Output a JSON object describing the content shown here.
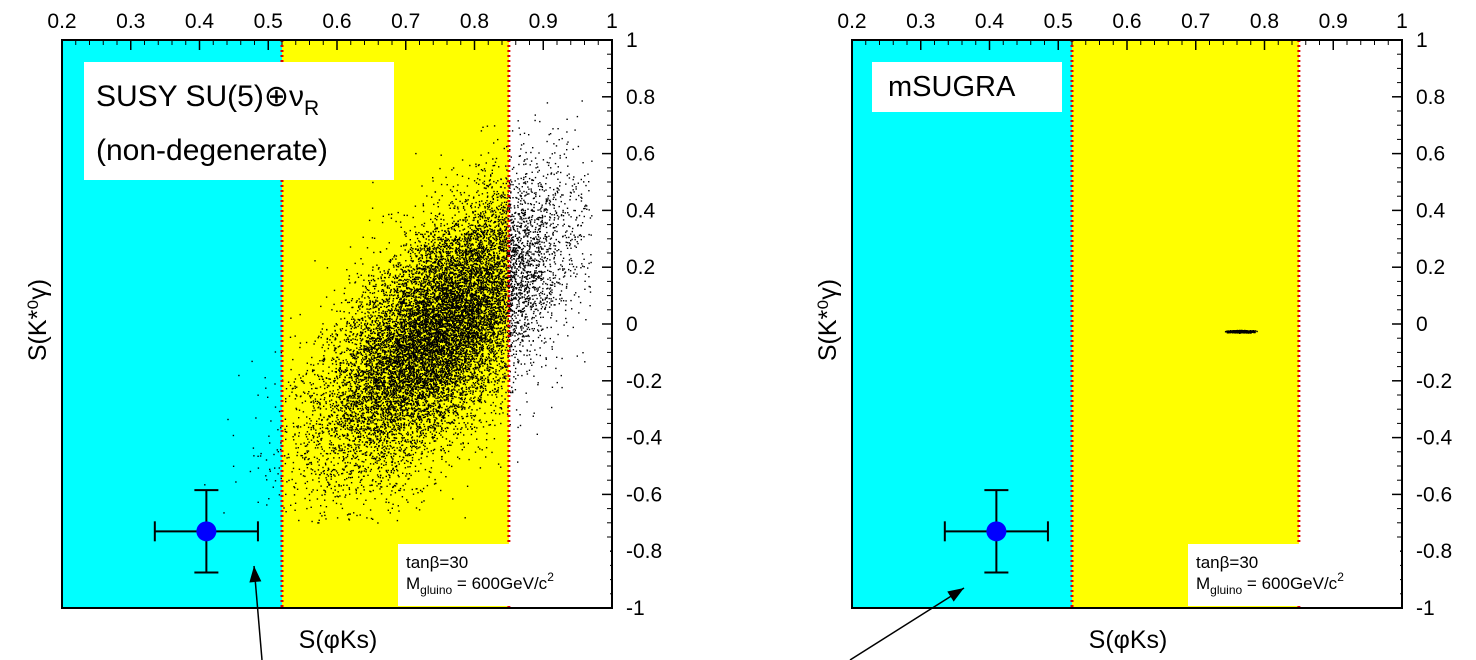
{
  "chart_data": [
    {
      "type": "scatter",
      "title": "",
      "xlabel": "S(φKs)",
      "ylabel": "S(K*⁰γ)",
      "xlim": [
        0.2,
        1.0
      ],
      "ylim": [
        -1.0,
        1.0
      ],
      "x_ticks": [
        "0.2",
        "0.3",
        "0.4",
        "0.5",
        "0.6",
        "0.7",
        "0.8",
        "0.9",
        "1"
      ],
      "y_ticks": [
        "1",
        "0.8",
        "0.6",
        "0.4",
        "0.2",
        "0",
        "-0.2",
        "-0.4",
        "-0.6",
        "-0.8",
        "-1"
      ],
      "x_axis_position": "top",
      "y_axis_position": "right",
      "grid": false,
      "legend": null,
      "bands": [
        {
          "x_from": 0.2,
          "x_to": 0.52,
          "color": "#00ffff"
        },
        {
          "x_from": 0.52,
          "x_to": 0.85,
          "color": "#ffff00"
        }
      ],
      "band_boundaries": [
        0.52,
        0.85
      ],
      "annotation_box": {
        "line1": "SUSY SU(5)⊕ν",
        "line1_sub": "R",
        "line2": "(non-degenerate)"
      },
      "param_box": {
        "tanb": "tanβ=30",
        "mass_prefix": "M",
        "mass_sub": "gluino",
        "mass_value": " = 600GeV/c",
        "mass_sup": "2"
      },
      "measurement": {
        "x": 0.41,
        "y": -0.73,
        "x_err": 0.075,
        "y_err": 0.145,
        "color": "#0000ff"
      },
      "scatter_distribution": {
        "center": [
          0.75,
          -0.02
        ],
        "sd_x": 0.085,
        "sd_y": 0.24,
        "correlation": 0.65,
        "x_range": [
          0.33,
          0.97
        ],
        "y_range": [
          -0.7,
          0.85
        ],
        "point_count": 14000
      },
      "arrow_pointing_to": {
        "x": 0.47,
        "y": -0.84
      }
    },
    {
      "type": "scatter",
      "title": "",
      "xlabel": "S(φKs)",
      "ylabel": "S(K*⁰γ)",
      "xlim": [
        0.2,
        1.0
      ],
      "ylim": [
        -1.0,
        1.0
      ],
      "x_ticks": [
        "0.2",
        "0.3",
        "0.4",
        "0.5",
        "0.6",
        "0.7",
        "0.8",
        "0.9",
        "1"
      ],
      "y_ticks": [
        "1",
        "0.8",
        "0.6",
        "0.4",
        "0.2",
        "0",
        "-0.2",
        "-0.4",
        "-0.6",
        "-0.8",
        "-1"
      ],
      "x_axis_position": "top",
      "y_axis_position": "right",
      "grid": false,
      "legend": null,
      "bands": [
        {
          "x_from": 0.2,
          "x_to": 0.52,
          "color": "#00ffff"
        },
        {
          "x_from": 0.52,
          "x_to": 0.85,
          "color": "#ffff00"
        }
      ],
      "band_boundaries": [
        0.52,
        0.85
      ],
      "annotation_box": {
        "line1": "mSUGRA",
        "line1_sub": "",
        "line2": ""
      },
      "param_box": {
        "tanb": "tanβ=30",
        "mass_prefix": "M",
        "mass_sub": "gluino",
        "mass_value": " = 600GeV/c",
        "mass_sup": "2"
      },
      "measurement": {
        "x": 0.41,
        "y": -0.73,
        "x_err": 0.075,
        "y_err": 0.145,
        "color": "#0000ff"
      },
      "scatter_distribution": {
        "center": [
          0.765,
          -0.025
        ],
        "sd_x": 0.009,
        "sd_y": 0.002,
        "correlation": 0.0,
        "x_range": [
          0.74,
          0.79
        ],
        "y_range": [
          -0.03,
          -0.02
        ],
        "point_count": 500
      },
      "arrow_pointing_to": {
        "x": 0.38,
        "y": -0.84
      }
    }
  ]
}
